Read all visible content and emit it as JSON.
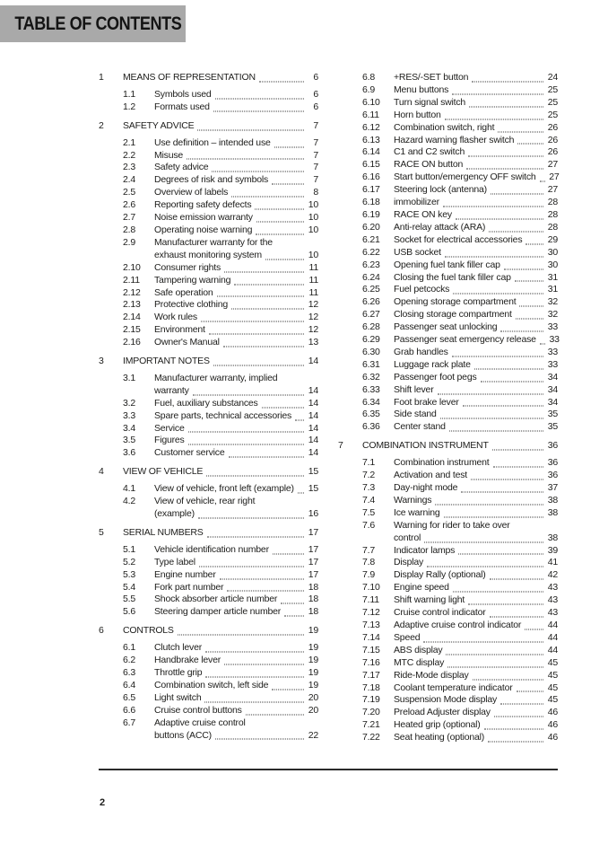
{
  "header": {
    "title": "TABLE OF CONTENTS"
  },
  "footer": {
    "page_number": "2"
  },
  "colors": {
    "header_bg": "#a9a9a9",
    "text": "#1d1d1b",
    "rule": "#2a2a2a"
  },
  "toc": {
    "columns": [
      {
        "sections": [
          {
            "number": "1",
            "title": "MEANS OF REPRESENTATION",
            "page": "6",
            "items": [
              {
                "number": "1.1",
                "lines": [
                  "Symbols used"
                ],
                "page": "6"
              },
              {
                "number": "1.2",
                "lines": [
                  "Formats used"
                ],
                "page": "6"
              }
            ]
          },
          {
            "number": "2",
            "title": "SAFETY ADVICE",
            "page": "7",
            "items": [
              {
                "number": "2.1",
                "lines": [
                  "Use definition – intended use"
                ],
                "page": "7"
              },
              {
                "number": "2.2",
                "lines": [
                  "Misuse"
                ],
                "page": "7"
              },
              {
                "number": "2.3",
                "lines": [
                  "Safety advice"
                ],
                "page": "7"
              },
              {
                "number": "2.4",
                "lines": [
                  "Degrees of risk and symbols"
                ],
                "page": "7"
              },
              {
                "number": "2.5",
                "lines": [
                  "Overview of labels"
                ],
                "page": "8"
              },
              {
                "number": "2.6",
                "lines": [
                  "Reporting safety defects"
                ],
                "page": "10"
              },
              {
                "number": "2.7",
                "lines": [
                  "Noise emission warranty"
                ],
                "page": "10"
              },
              {
                "number": "2.8",
                "lines": [
                  "Operating noise warning"
                ],
                "page": "10"
              },
              {
                "number": "2.9",
                "lines": [
                  "Manufacturer warranty for the",
                  "exhaust monitoring system"
                ],
                "page": "10"
              },
              {
                "number": "2.10",
                "lines": [
                  "Consumer rights"
                ],
                "page": "11"
              },
              {
                "number": "2.11",
                "lines": [
                  "Tampering warning"
                ],
                "page": "11"
              },
              {
                "number": "2.12",
                "lines": [
                  "Safe operation"
                ],
                "page": "11"
              },
              {
                "number": "2.13",
                "lines": [
                  "Protective clothing"
                ],
                "page": "12"
              },
              {
                "number": "2.14",
                "lines": [
                  "Work rules"
                ],
                "page": "12"
              },
              {
                "number": "2.15",
                "lines": [
                  "Environment"
                ],
                "page": "12"
              },
              {
                "number": "2.16",
                "lines": [
                  "Owner's Manual"
                ],
                "page": "13"
              }
            ]
          },
          {
            "number": "3",
            "title": "IMPORTANT NOTES",
            "page": "14",
            "items": [
              {
                "number": "3.1",
                "lines": [
                  "Manufacturer warranty, implied",
                  "warranty"
                ],
                "page": "14"
              },
              {
                "number": "3.2",
                "lines": [
                  "Fuel, auxiliary substances"
                ],
                "page": "14"
              },
              {
                "number": "3.3",
                "lines": [
                  "Spare parts, technical accessories"
                ],
                "page": "14"
              },
              {
                "number": "3.4",
                "lines": [
                  "Service"
                ],
                "page": "14"
              },
              {
                "number": "3.5",
                "lines": [
                  "Figures"
                ],
                "page": "14"
              },
              {
                "number": "3.6",
                "lines": [
                  "Customer service"
                ],
                "page": "14"
              }
            ]
          },
          {
            "number": "4",
            "title": "VIEW OF VEHICLE",
            "page": "15",
            "items": [
              {
                "number": "4.1",
                "lines": [
                  "View of vehicle, front left (example)"
                ],
                "page": "15"
              },
              {
                "number": "4.2",
                "lines": [
                  "View of vehicle, rear right",
                  "(example)"
                ],
                "page": "16"
              }
            ]
          },
          {
            "number": "5",
            "title": "SERIAL NUMBERS",
            "page": "17",
            "items": [
              {
                "number": "5.1",
                "lines": [
                  "Vehicle identification number"
                ],
                "page": "17"
              },
              {
                "number": "5.2",
                "lines": [
                  "Type label"
                ],
                "page": "17"
              },
              {
                "number": "5.3",
                "lines": [
                  "Engine number"
                ],
                "page": "17"
              },
              {
                "number": "5.4",
                "lines": [
                  "Fork part number"
                ],
                "page": "18"
              },
              {
                "number": "5.5",
                "lines": [
                  "Shock absorber article number"
                ],
                "page": "18"
              },
              {
                "number": "5.6",
                "lines": [
                  "Steering damper article number"
                ],
                "page": "18"
              }
            ]
          },
          {
            "number": "6",
            "title": "CONTROLS",
            "page": "19",
            "items": [
              {
                "number": "6.1",
                "lines": [
                  "Clutch lever"
                ],
                "page": "19"
              },
              {
                "number": "6.2",
                "lines": [
                  "Handbrake lever"
                ],
                "page": "19"
              },
              {
                "number": "6.3",
                "lines": [
                  "Throttle grip"
                ],
                "page": "19"
              },
              {
                "number": "6.4",
                "lines": [
                  "Combination switch, left side"
                ],
                "page": "19"
              },
              {
                "number": "6.5",
                "lines": [
                  "Light switch"
                ],
                "page": "20"
              },
              {
                "number": "6.6",
                "lines": [
                  "Cruise control buttons"
                ],
                "page": "20"
              },
              {
                "number": "6.7",
                "lines": [
                  "Adaptive cruise control",
                  "buttons (ACC)"
                ],
                "page": "22"
              }
            ]
          }
        ]
      },
      {
        "sections": [
          {
            "number": null,
            "title": null,
            "page": null,
            "items": [
              {
                "number": "6.8",
                "lines": [
                  "+RES/-SET button"
                ],
                "page": "24"
              },
              {
                "number": "6.9",
                "lines": [
                  "Menu buttons"
                ],
                "page": "25"
              },
              {
                "number": "6.10",
                "lines": [
                  "Turn signal switch"
                ],
                "page": "25"
              },
              {
                "number": "6.11",
                "lines": [
                  "Horn button"
                ],
                "page": "25"
              },
              {
                "number": "6.12",
                "lines": [
                  "Combination switch, right"
                ],
                "page": "26"
              },
              {
                "number": "6.13",
                "lines": [
                  "Hazard warning flasher switch"
                ],
                "page": "26"
              },
              {
                "number": "6.14",
                "lines": [
                  "C1 and C2 switch"
                ],
                "page": "26"
              },
              {
                "number": "6.15",
                "lines": [
                  "RACE ON button"
                ],
                "page": "27"
              },
              {
                "number": "6.16",
                "lines": [
                  "Start button/emergency OFF switch"
                ],
                "page": "27"
              },
              {
                "number": "6.17",
                "lines": [
                  "Steering lock (antenna)"
                ],
                "page": "27"
              },
              {
                "number": "6.18",
                "lines": [
                  "immobilizer"
                ],
                "page": "28"
              },
              {
                "number": "6.19",
                "lines": [
                  "RACE ON key"
                ],
                "page": "28"
              },
              {
                "number": "6.20",
                "lines": [
                  "Anti-relay attack (ARA)"
                ],
                "page": "28"
              },
              {
                "number": "6.21",
                "lines": [
                  "Socket for electrical accessories"
                ],
                "page": "29"
              },
              {
                "number": "6.22",
                "lines": [
                  "USB socket"
                ],
                "page": "30"
              },
              {
                "number": "6.23",
                "lines": [
                  "Opening fuel tank filler cap"
                ],
                "page": "30"
              },
              {
                "number": "6.24",
                "lines": [
                  "Closing the fuel tank filler cap"
                ],
                "page": "31"
              },
              {
                "number": "6.25",
                "lines": [
                  "Fuel petcocks"
                ],
                "page": "31"
              },
              {
                "number": "6.26",
                "lines": [
                  "Opening storage compartment"
                ],
                "page": "32"
              },
              {
                "number": "6.27",
                "lines": [
                  "Closing storage compartment"
                ],
                "page": "32"
              },
              {
                "number": "6.28",
                "lines": [
                  "Passenger seat unlocking"
                ],
                "page": "33"
              },
              {
                "number": "6.29",
                "lines": [
                  "Passenger seat emergency release"
                ],
                "page": "33"
              },
              {
                "number": "6.30",
                "lines": [
                  "Grab handles"
                ],
                "page": "33"
              },
              {
                "number": "6.31",
                "lines": [
                  "Luggage rack plate"
                ],
                "page": "33"
              },
              {
                "number": "6.32",
                "lines": [
                  "Passenger foot pegs"
                ],
                "page": "34"
              },
              {
                "number": "6.33",
                "lines": [
                  "Shift lever"
                ],
                "page": "34"
              },
              {
                "number": "6.34",
                "lines": [
                  "Foot brake lever"
                ],
                "page": "34"
              },
              {
                "number": "6.35",
                "lines": [
                  "Side stand"
                ],
                "page": "35"
              },
              {
                "number": "6.36",
                "lines": [
                  "Center stand"
                ],
                "page": "35"
              }
            ]
          },
          {
            "number": "7",
            "title": "COMBINATION INSTRUMENT",
            "page": "36",
            "items": [
              {
                "number": "7.1",
                "lines": [
                  "Combination instrument"
                ],
                "page": "36"
              },
              {
                "number": "7.2",
                "lines": [
                  "Activation and test"
                ],
                "page": "36"
              },
              {
                "number": "7.3",
                "lines": [
                  "Day-night mode"
                ],
                "page": "37"
              },
              {
                "number": "7.4",
                "lines": [
                  "Warnings"
                ],
                "page": "38"
              },
              {
                "number": "7.5",
                "lines": [
                  "Ice warning"
                ],
                "page": "38"
              },
              {
                "number": "7.6",
                "lines": [
                  "Warning for rider to take over",
                  "control"
                ],
                "page": "38"
              },
              {
                "number": "7.7",
                "lines": [
                  "Indicator lamps"
                ],
                "page": "39"
              },
              {
                "number": "7.8",
                "lines": [
                  "Display"
                ],
                "page": "41"
              },
              {
                "number": "7.9",
                "lines": [
                  "Display Rally (optional)"
                ],
                "page": "42"
              },
              {
                "number": "7.10",
                "lines": [
                  "Engine speed"
                ],
                "page": "43"
              },
              {
                "number": "7.11",
                "lines": [
                  "Shift warning light"
                ],
                "page": "43"
              },
              {
                "number": "7.12",
                "lines": [
                  "Cruise control indicator"
                ],
                "page": "43"
              },
              {
                "number": "7.13",
                "lines": [
                  "Adaptive cruise control indicator"
                ],
                "page": "44"
              },
              {
                "number": "7.14",
                "lines": [
                  "Speed"
                ],
                "page": "44"
              },
              {
                "number": "7.15",
                "lines": [
                  "ABS display"
                ],
                "page": "44"
              },
              {
                "number": "7.16",
                "lines": [
                  "MTC display"
                ],
                "page": "45"
              },
              {
                "number": "7.17",
                "lines": [
                  "Ride-Mode display"
                ],
                "page": "45"
              },
              {
                "number": "7.18",
                "lines": [
                  "Coolant temperature indicator"
                ],
                "page": "45"
              },
              {
                "number": "7.19",
                "lines": [
                  "Suspension Mode display"
                ],
                "page": "45"
              },
              {
                "number": "7.20",
                "lines": [
                  "Preload Adjuster display"
                ],
                "page": "46"
              },
              {
                "number": "7.21",
                "lines": [
                  "Heated grip (optional)"
                ],
                "page": "46"
              },
              {
                "number": "7.22",
                "lines": [
                  "Seat heating (optional)"
                ],
                "page": "46"
              }
            ]
          }
        ]
      }
    ]
  }
}
